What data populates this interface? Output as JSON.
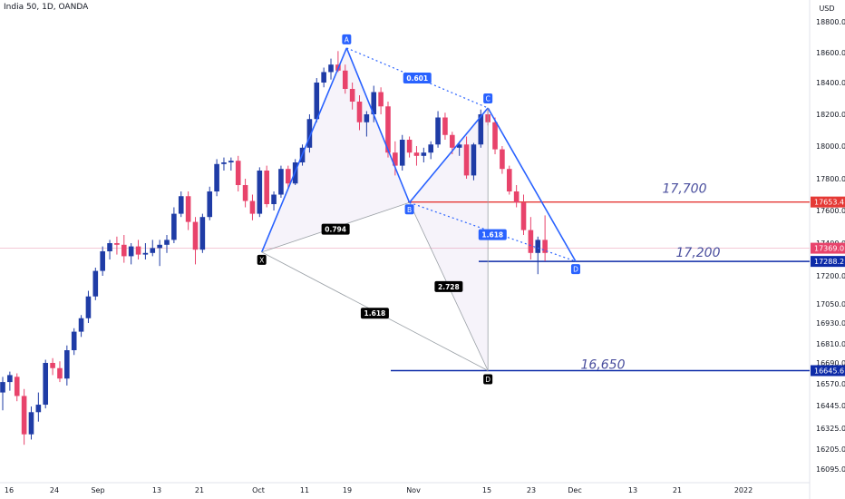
{
  "title": "India 50, 1D, OANDA",
  "currency": "USD",
  "chart_data": {
    "type": "candlestick",
    "symbol": "India 50",
    "interval": "1D",
    "source": "OANDA",
    "ylim": [
      16030,
      18900
    ],
    "y_ticks": [
      18800.0,
      18600.0,
      18400.0,
      18200.0,
      18000.0,
      17800.0,
      17600.0,
      17400.0,
      17200.0,
      17050.0,
      16930.0,
      16810.0,
      16690.0,
      16570.0,
      16445.0,
      16325.0,
      16205.0,
      16095.0
    ],
    "x_labels": [
      "16",
      "24",
      "Sep",
      "13",
      "21",
      "Oct",
      "11",
      "19",
      "Nov",
      "15",
      "23",
      "Dec",
      "13",
      "21",
      "2022"
    ],
    "colors": {
      "up": "#1f3ca6",
      "down": "#e8436b"
    },
    "candles": [
      {
        "o": 16520,
        "h": 16610,
        "l": 16420,
        "c": 16580
      },
      {
        "o": 16580,
        "h": 16640,
        "l": 16530,
        "c": 16620
      },
      {
        "o": 16610,
        "h": 16630,
        "l": 16470,
        "c": 16500
      },
      {
        "o": 16500,
        "h": 16540,
        "l": 16230,
        "c": 16290
      },
      {
        "o": 16290,
        "h": 16440,
        "l": 16260,
        "c": 16410
      },
      {
        "o": 16410,
        "h": 16520,
        "l": 16360,
        "c": 16450
      },
      {
        "o": 16450,
        "h": 16710,
        "l": 16430,
        "c": 16690
      },
      {
        "o": 16690,
        "h": 16720,
        "l": 16620,
        "c": 16660
      },
      {
        "o": 16660,
        "h": 16700,
        "l": 16580,
        "c": 16600
      },
      {
        "o": 16600,
        "h": 16800,
        "l": 16560,
        "c": 16770
      },
      {
        "o": 16770,
        "h": 16900,
        "l": 16740,
        "c": 16880
      },
      {
        "o": 16880,
        "h": 16980,
        "l": 16850,
        "c": 16960
      },
      {
        "o": 16960,
        "h": 17120,
        "l": 16930,
        "c": 17090
      },
      {
        "o": 17090,
        "h": 17250,
        "l": 17070,
        "c": 17230
      },
      {
        "o": 17230,
        "h": 17380,
        "l": 17200,
        "c": 17350
      },
      {
        "o": 17350,
        "h": 17420,
        "l": 17300,
        "c": 17400
      },
      {
        "o": 17400,
        "h": 17440,
        "l": 17330,
        "c": 17390
      },
      {
        "o": 17390,
        "h": 17450,
        "l": 17280,
        "c": 17320
      },
      {
        "o": 17320,
        "h": 17400,
        "l": 17270,
        "c": 17380
      },
      {
        "o": 17380,
        "h": 17420,
        "l": 17300,
        "c": 17330
      },
      {
        "o": 17330,
        "h": 17400,
        "l": 17300,
        "c": 17340
      },
      {
        "o": 17340,
        "h": 17420,
        "l": 17320,
        "c": 17370
      },
      {
        "o": 17370,
        "h": 17420,
        "l": 17260,
        "c": 17390
      },
      {
        "o": 17390,
        "h": 17450,
        "l": 17340,
        "c": 17420
      },
      {
        "o": 17420,
        "h": 17620,
        "l": 17400,
        "c": 17580
      },
      {
        "o": 17580,
        "h": 17720,
        "l": 17560,
        "c": 17690
      },
      {
        "o": 17690,
        "h": 17720,
        "l": 17480,
        "c": 17530
      },
      {
        "o": 17530,
        "h": 17560,
        "l": 17270,
        "c": 17360
      },
      {
        "o": 17360,
        "h": 17580,
        "l": 17340,
        "c": 17560
      },
      {
        "o": 17560,
        "h": 17750,
        "l": 17540,
        "c": 17720
      },
      {
        "o": 17720,
        "h": 17920,
        "l": 17690,
        "c": 17890
      },
      {
        "o": 17890,
        "h": 17930,
        "l": 17850,
        "c": 17900
      },
      {
        "o": 17900,
        "h": 17930,
        "l": 17850,
        "c": 17910
      },
      {
        "o": 17910,
        "h": 17940,
        "l": 17720,
        "c": 17760
      },
      {
        "o": 17760,
        "h": 17800,
        "l": 17620,
        "c": 17660
      },
      {
        "o": 17660,
        "h": 17700,
        "l": 17540,
        "c": 17580
      },
      {
        "o": 17580,
        "h": 17870,
        "l": 17560,
        "c": 17850
      },
      {
        "o": 17850,
        "h": 17880,
        "l": 17620,
        "c": 17640
      },
      {
        "o": 17640,
        "h": 17720,
        "l": 17600,
        "c": 17700
      },
      {
        "o": 17700,
        "h": 17880,
        "l": 17680,
        "c": 17860
      },
      {
        "o": 17860,
        "h": 17880,
        "l": 17740,
        "c": 17770
      },
      {
        "o": 17770,
        "h": 17920,
        "l": 17760,
        "c": 17900
      },
      {
        "o": 17900,
        "h": 18010,
        "l": 17880,
        "c": 17990
      },
      {
        "o": 17990,
        "h": 18200,
        "l": 17960,
        "c": 18170
      },
      {
        "o": 18170,
        "h": 18430,
        "l": 18150,
        "c": 18400
      },
      {
        "o": 18400,
        "h": 18500,
        "l": 18370,
        "c": 18470
      },
      {
        "o": 18470,
        "h": 18560,
        "l": 18420,
        "c": 18520
      },
      {
        "o": 18520,
        "h": 18610,
        "l": 18470,
        "c": 18480
      },
      {
        "o": 18480,
        "h": 18520,
        "l": 18330,
        "c": 18360
      },
      {
        "o": 18360,
        "h": 18400,
        "l": 18230,
        "c": 18280
      },
      {
        "o": 18280,
        "h": 18320,
        "l": 18100,
        "c": 18150
      },
      {
        "o": 18150,
        "h": 18220,
        "l": 18060,
        "c": 18200
      },
      {
        "o": 18200,
        "h": 18380,
        "l": 18150,
        "c": 18340
      },
      {
        "o": 18340,
        "h": 18370,
        "l": 18200,
        "c": 18250
      },
      {
        "o": 18250,
        "h": 18280,
        "l": 17930,
        "c": 17960
      },
      {
        "o": 17960,
        "h": 18030,
        "l": 17820,
        "c": 17880
      },
      {
        "o": 17880,
        "h": 18070,
        "l": 17850,
        "c": 18040
      },
      {
        "o": 18040,
        "h": 18060,
        "l": 17930,
        "c": 17960
      },
      {
        "o": 17960,
        "h": 18000,
        "l": 17880,
        "c": 17940
      },
      {
        "o": 17940,
        "h": 17990,
        "l": 17900,
        "c": 17960
      },
      {
        "o": 17960,
        "h": 18030,
        "l": 17920,
        "c": 18010
      },
      {
        "o": 18010,
        "h": 18220,
        "l": 17990,
        "c": 18180
      },
      {
        "o": 18180,
        "h": 18210,
        "l": 18040,
        "c": 18070
      },
      {
        "o": 18070,
        "h": 18090,
        "l": 17950,
        "c": 17990
      },
      {
        "o": 17990,
        "h": 18030,
        "l": 17940,
        "c": 18010
      },
      {
        "o": 18010,
        "h": 18060,
        "l": 17800,
        "c": 17820
      },
      {
        "o": 17820,
        "h": 18020,
        "l": 17790,
        "c": 18010
      },
      {
        "o": 18010,
        "h": 18230,
        "l": 17990,
        "c": 18200
      },
      {
        "o": 18200,
        "h": 18230,
        "l": 18130,
        "c": 18150
      },
      {
        "o": 18150,
        "h": 18180,
        "l": 17950,
        "c": 17980
      },
      {
        "o": 17980,
        "h": 18000,
        "l": 17830,
        "c": 17860
      },
      {
        "o": 17860,
        "h": 17880,
        "l": 17700,
        "c": 17720
      },
      {
        "o": 17720,
        "h": 17760,
        "l": 17620,
        "c": 17650
      },
      {
        "o": 17650,
        "h": 17700,
        "l": 17450,
        "c": 17480
      },
      {
        "o": 17480,
        "h": 17560,
        "l": 17300,
        "c": 17340
      },
      {
        "o": 17340,
        "h": 17440,
        "l": 17210,
        "c": 17420
      },
      {
        "o": 17420,
        "h": 17570,
        "l": 17290,
        "c": 17340
      }
    ],
    "harmonic_points": [
      {
        "label": "X"
      },
      {
        "label": "A"
      },
      {
        "label": "B"
      },
      {
        "label": "C"
      },
      {
        "label": "D"
      }
    ],
    "ratios": [
      "0.601",
      "0.794",
      "1.618",
      "2.728",
      "1.618"
    ],
    "levels": [
      {
        "label": "17,700",
        "price": 17653.4,
        "tag": "17653.4",
        "color": "#e53935"
      },
      {
        "label": "17,200",
        "price": 17288.2,
        "tag": "17288.2",
        "color": "#0d2ba8"
      },
      {
        "label": "16,650",
        "price": 16645.6,
        "tag": "16645.6",
        "color": "#0d2ba8"
      }
    ],
    "last_price": {
      "value": 17369.0,
      "tag": "17369.0",
      "color": "#e8436b"
    }
  }
}
